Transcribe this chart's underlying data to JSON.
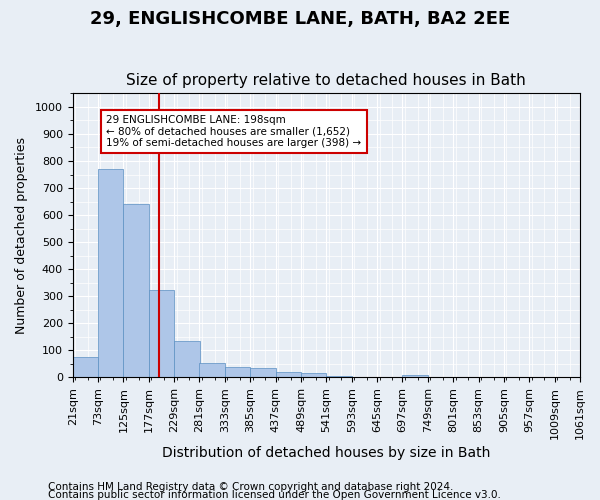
{
  "title1": "29, ENGLISHCOMBE LANE, BATH, BA2 2EE",
  "title2": "Size of property relative to detached houses in Bath",
  "xlabel": "Distribution of detached houses by size in Bath",
  "ylabel": "Number of detached properties",
  "footnote1": "Contains HM Land Registry data © Crown copyright and database right 2024.",
  "footnote2": "Contains public sector information licensed under the Open Government Licence v3.0.",
  "bar_edges": [
    21,
    73,
    125,
    177,
    229,
    281,
    333,
    385,
    437,
    489,
    541,
    593,
    645,
    697,
    749,
    801,
    853,
    905,
    957,
    1009,
    1061
  ],
  "bar_heights": [
    75,
    770,
    640,
    325,
    135,
    55,
    40,
    35,
    20,
    18,
    5,
    0,
    0,
    10,
    0,
    0,
    0,
    0,
    0,
    0
  ],
  "bar_color": "#aec6e8",
  "bar_edge_color": "#5a8fc2",
  "property_size": 198,
  "vline_color": "#cc0000",
  "annotation_text": "29 ENGLISHCOMBE LANE: 198sqm\n← 80% of detached houses are smaller (1,652)\n19% of semi-detached houses are larger (398) →",
  "annotation_box_color": "#cc0000",
  "ylim": [
    0,
    1050
  ],
  "yticks": [
    0,
    100,
    200,
    300,
    400,
    500,
    600,
    700,
    800,
    900,
    1000
  ],
  "bg_color": "#e8eef5",
  "plot_bg_color": "#e8eef5",
  "grid_color": "#ffffff",
  "title1_fontsize": 13,
  "title2_fontsize": 11,
  "xlabel_fontsize": 10,
  "ylabel_fontsize": 9,
  "tick_fontsize": 8,
  "footnote_fontsize": 7.5
}
